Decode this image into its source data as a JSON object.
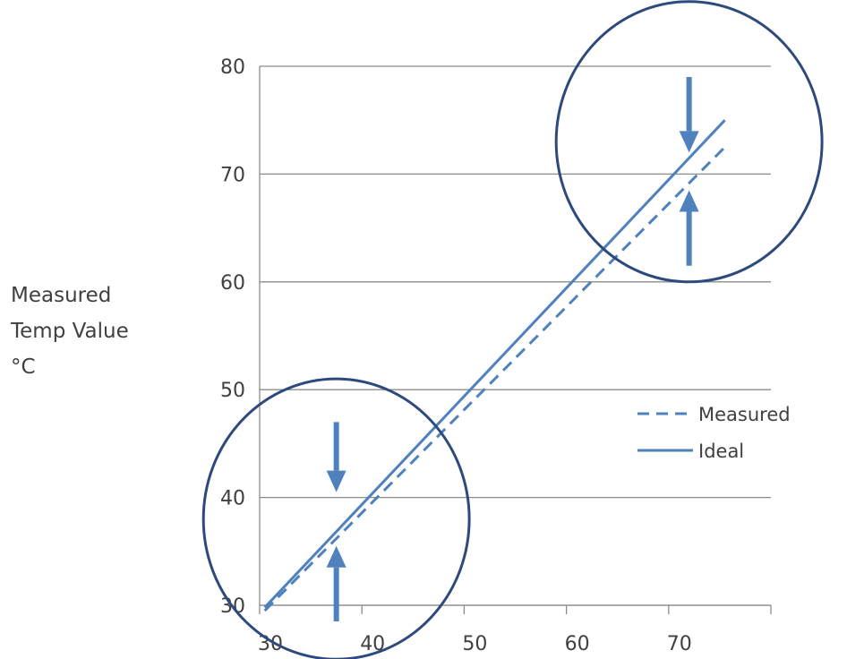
{
  "chart_data": {
    "type": "line",
    "ylabel": [
      "Measured",
      "Temp Value",
      "°C"
    ],
    "xlabel": "",
    "xlim": [
      30,
      80
    ],
    "ylim": [
      30,
      80
    ],
    "xticks": [
      30,
      40,
      50,
      60,
      70
    ],
    "yticks": [
      30,
      40,
      50,
      60,
      70,
      80
    ],
    "grid": "horizontal",
    "legend_position": "right",
    "series": [
      {
        "name": "Measured",
        "style": "dashed",
        "color": "#4f81bd",
        "x": [
          30.5,
          75.5
        ],
        "y": [
          29.5,
          72.5
        ]
      },
      {
        "name": "Ideal",
        "style": "solid",
        "color": "#4f81bd",
        "x": [
          30.5,
          75.5
        ],
        "y": [
          29.8,
          75.0
        ]
      }
    ],
    "annotations": [
      {
        "type": "circle",
        "center": [
          37.5,
          38
        ],
        "r": 13
      },
      {
        "type": "circle",
        "center": [
          72,
          73
        ],
        "r": 13
      },
      {
        "type": "arrow-down",
        "x": 37.5,
        "y_from": 47,
        "y_to": 40.5
      },
      {
        "type": "arrow-up",
        "x": 37.5,
        "y_from": 28.5,
        "y_to": 35.5
      },
      {
        "type": "arrow-down",
        "x": 72,
        "y_from": 79,
        "y_to": 72
      },
      {
        "type": "arrow-up",
        "x": 72,
        "y_from": 61.5,
        "y_to": 68.5
      }
    ],
    "colors": {
      "line": "#4f81bd",
      "circle": "#2e4a7d",
      "grid": "#8c8c8c",
      "text": "#404040"
    }
  }
}
